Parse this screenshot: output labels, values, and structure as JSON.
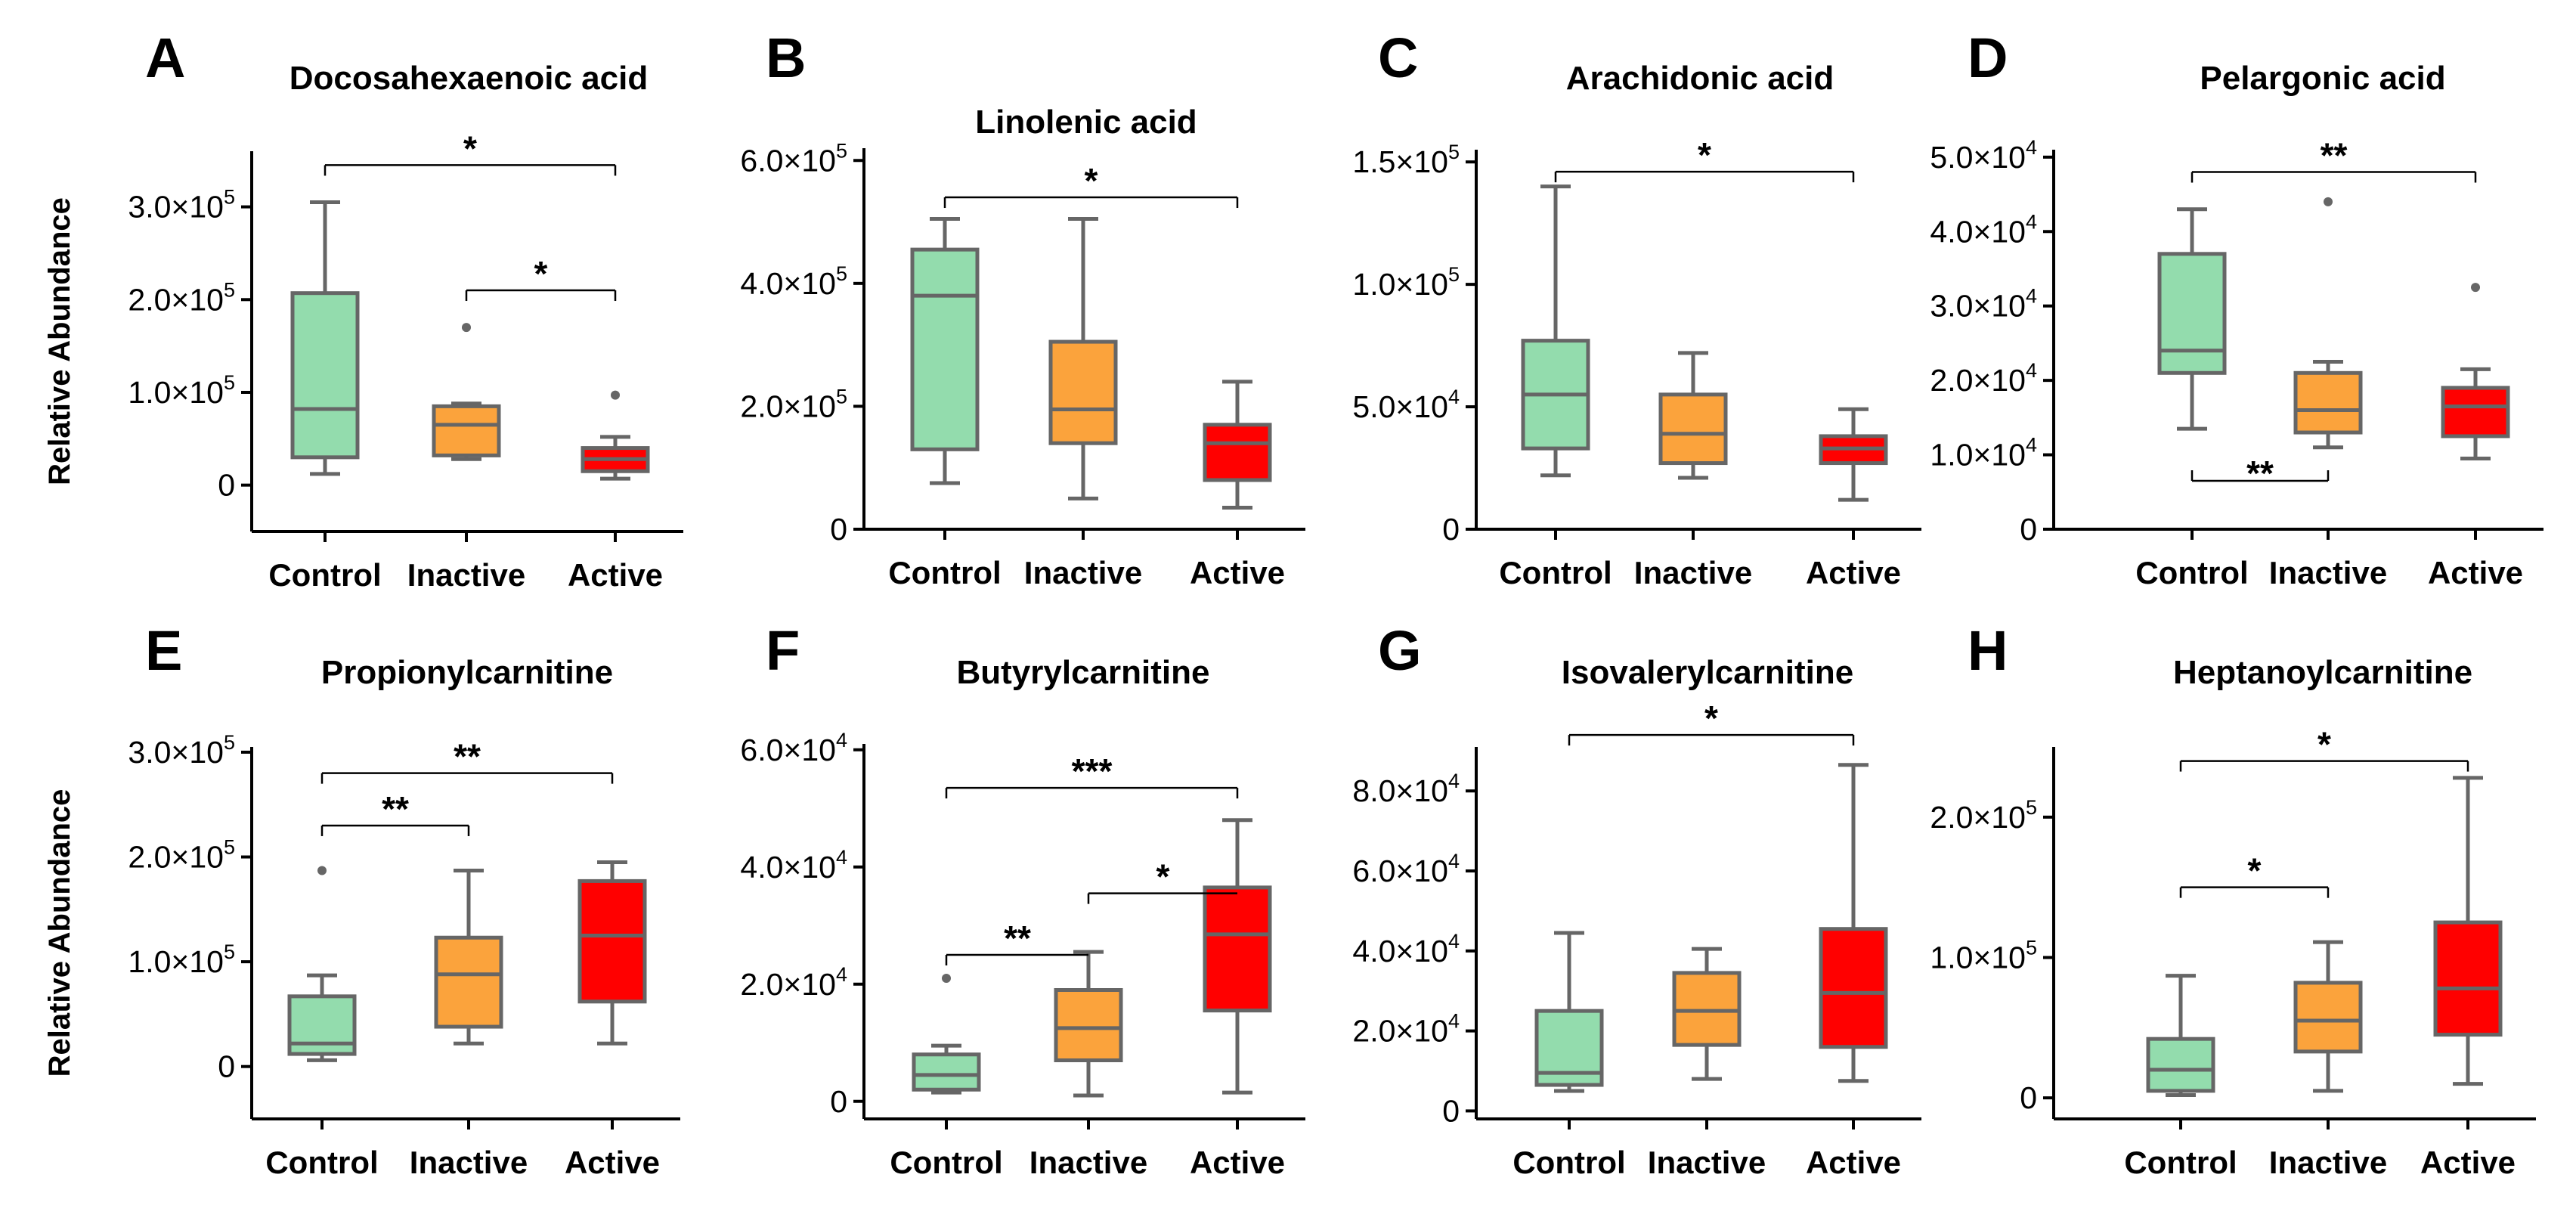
{
  "colors": {
    "Control": "#93dcad",
    "Inactive": "#fba33c",
    "Active": "#ff0000",
    "stroke": "#666666"
  },
  "ylabel": "Relative Abundance",
  "chart_data": [
    {
      "panel": "A",
      "title": "Docosahexaenoic acid",
      "type": "box",
      "categories": [
        "Control",
        "Inactive",
        "Active"
      ],
      "ylim": [
        -50000,
        360000
      ],
      "ylabel": "Relative Abundance",
      "ticks": [
        {
          "value": 0,
          "mant": "0",
          "exp": ""
        },
        {
          "value": 100000,
          "mant": "1.0×10",
          "exp": "5"
        },
        {
          "value": 200000,
          "mant": "2.0×10",
          "exp": "5"
        },
        {
          "value": 300000,
          "mant": "3.0×10",
          "exp": "5"
        }
      ],
      "boxes": [
        {
          "group": "Control",
          "min": 12000,
          "q1": 30000,
          "median": 82000,
          "q3": 207000,
          "max": 305000,
          "outliers": []
        },
        {
          "group": "Inactive",
          "min": 28000,
          "q1": 32000,
          "median": 65000,
          "q3": 85000,
          "max": 88000,
          "outliers": [
            170000
          ]
        },
        {
          "group": "Active",
          "min": 7000,
          "q1": 15000,
          "median": 28000,
          "q3": 40000,
          "max": 52000,
          "outliers": [
            97000
          ]
        }
      ],
      "significance": [
        {
          "from": "Control",
          "to": "Active",
          "label": "*",
          "y": 345000,
          "tick": "down"
        },
        {
          "from": "Inactive",
          "to": "Active",
          "label": "*",
          "y": 210000,
          "tick": "down"
        }
      ]
    },
    {
      "panel": "B",
      "title": "Linolenic acid",
      "type": "box",
      "categories": [
        "Control",
        "Inactive",
        "Active"
      ],
      "ylim": [
        0,
        620000
      ],
      "ticks": [
        {
          "value": 0,
          "mant": "0",
          "exp": ""
        },
        {
          "value": 200000,
          "mant": "2.0×10",
          "exp": "5"
        },
        {
          "value": 400000,
          "mant": "4.0×10",
          "exp": "5"
        },
        {
          "value": 600000,
          "mant": "6.0×10",
          "exp": "5"
        }
      ],
      "boxes": [
        {
          "group": "Control",
          "min": 75000,
          "q1": 130000,
          "median": 380000,
          "q3": 455000,
          "max": 505000,
          "outliers": []
        },
        {
          "group": "Inactive",
          "min": 50000,
          "q1": 140000,
          "median": 195000,
          "q3": 305000,
          "max": 505000,
          "outliers": []
        },
        {
          "group": "Active",
          "min": 35000,
          "q1": 80000,
          "median": 140000,
          "q3": 170000,
          "max": 240000,
          "outliers": []
        }
      ],
      "significance": [
        {
          "from": "Control",
          "to": "Active",
          "label": "*",
          "y": 540000,
          "tick": "down"
        }
      ]
    },
    {
      "panel": "C",
      "title": "Arachidonic acid",
      "type": "box",
      "categories": [
        "Control",
        "Inactive",
        "Active"
      ],
      "ylim": [
        0,
        155000
      ],
      "ticks": [
        {
          "value": 0,
          "mant": "0",
          "exp": ""
        },
        {
          "value": 50000,
          "mant": "5.0×10",
          "exp": "4"
        },
        {
          "value": 100000,
          "mant": "1.0×10",
          "exp": "5"
        },
        {
          "value": 150000,
          "mant": "1.5×10",
          "exp": "5"
        }
      ],
      "boxes": [
        {
          "group": "Control",
          "min": 22000,
          "q1": 33000,
          "median": 55000,
          "q3": 77000,
          "max": 140000,
          "outliers": []
        },
        {
          "group": "Inactive",
          "min": 21000,
          "q1": 27000,
          "median": 39000,
          "q3": 55000,
          "max": 72000,
          "outliers": []
        },
        {
          "group": "Active",
          "min": 12000,
          "q1": 27000,
          "median": 33000,
          "q3": 38000,
          "max": 49000,
          "outliers": []
        }
      ],
      "significance": [
        {
          "from": "Control",
          "to": "Active",
          "label": "*",
          "y": 146000,
          "tick": "down"
        }
      ]
    },
    {
      "panel": "D",
      "title": "Pelargonic acid",
      "type": "box",
      "categories": [
        "Control",
        "Inactive",
        "Active"
      ],
      "ylim": [
        0,
        51000
      ],
      "ticks": [
        {
          "value": 0,
          "mant": "0",
          "exp": ""
        },
        {
          "value": 10000,
          "mant": "1.0×10",
          "exp": "4"
        },
        {
          "value": 20000,
          "mant": "2.0×10",
          "exp": "4"
        },
        {
          "value": 30000,
          "mant": "3.0×10",
          "exp": "4"
        },
        {
          "value": 40000,
          "mant": "4.0×10",
          "exp": "4"
        },
        {
          "value": 50000,
          "mant": "5.0×10",
          "exp": "4"
        }
      ],
      "boxes": [
        {
          "group": "Control",
          "min": 13500,
          "q1": 21000,
          "median": 24000,
          "q3": 37000,
          "max": 43000,
          "outliers": []
        },
        {
          "group": "Inactive",
          "min": 11000,
          "q1": 13000,
          "median": 16000,
          "q3": 21000,
          "max": 22500,
          "outliers": [
            44000
          ]
        },
        {
          "group": "Active",
          "min": 9500,
          "q1": 12500,
          "median": 16500,
          "q3": 19000,
          "max": 21500,
          "outliers": [
            32500
          ]
        }
      ],
      "significance": [
        {
          "from": "Control",
          "to": "Active",
          "label": "**",
          "y": 48000,
          "tick": "down"
        },
        {
          "from": "Control",
          "to": "Inactive",
          "label": "**",
          "y": 6500,
          "tick": "up"
        }
      ]
    },
    {
      "panel": "E",
      "title": "Propionylcarnitine",
      "type": "box",
      "categories": [
        "Control",
        "Inactive",
        "Active"
      ],
      "ylim": [
        -50000,
        305000
      ],
      "ylabel": "Relative Abundance",
      "ticks": [
        {
          "value": 0,
          "mant": "0",
          "exp": ""
        },
        {
          "value": 100000,
          "mant": "1.0×10",
          "exp": "5"
        },
        {
          "value": 200000,
          "mant": "2.0×10",
          "exp": "5"
        },
        {
          "value": 300000,
          "mant": "3.0×10",
          "exp": "5"
        }
      ],
      "boxes": [
        {
          "group": "Control",
          "min": 6000,
          "q1": 12000,
          "median": 22000,
          "q3": 67000,
          "max": 87000,
          "outliers": [
            187000
          ]
        },
        {
          "group": "Inactive",
          "min": 22000,
          "q1": 38000,
          "median": 88000,
          "q3": 123000,
          "max": 187000,
          "outliers": []
        },
        {
          "group": "Active",
          "min": 22000,
          "q1": 62000,
          "median": 125000,
          "q3": 177000,
          "max": 195000,
          "outliers": []
        }
      ],
      "significance": [
        {
          "from": "Control",
          "to": "Active",
          "label": "**",
          "y": 280000,
          "tick": "down"
        },
        {
          "from": "Control",
          "to": "Inactive",
          "label": "**",
          "y": 230000,
          "tick": "down"
        }
      ]
    },
    {
      "panel": "F",
      "title": "Butyrylcarnitine",
      "type": "box",
      "categories": [
        "Control",
        "Inactive",
        "Active"
      ],
      "ylim": [
        -3000,
        61000
      ],
      "ticks": [
        {
          "value": 0,
          "mant": "0",
          "exp": ""
        },
        {
          "value": 20000,
          "mant": "2.0×10",
          "exp": "4"
        },
        {
          "value": 40000,
          "mant": "4.0×10",
          "exp": "4"
        },
        {
          "value": 60000,
          "mant": "6.0×10",
          "exp": "4"
        }
      ],
      "boxes": [
        {
          "group": "Control",
          "min": 1500,
          "q1": 2000,
          "median": 4500,
          "q3": 8000,
          "max": 9500,
          "outliers": [
            21000
          ]
        },
        {
          "group": "Inactive",
          "min": 1000,
          "q1": 7000,
          "median": 12500,
          "q3": 19000,
          "max": 25500,
          "outliers": []
        },
        {
          "group": "Active",
          "min": 1500,
          "q1": 15500,
          "median": 28500,
          "q3": 36500,
          "max": 48000,
          "outliers": []
        }
      ],
      "significance": [
        {
          "from": "Control",
          "to": "Active",
          "label": "***",
          "y": 53500,
          "tick": "down"
        },
        {
          "from": "Control",
          "to": "Inactive",
          "label": "**",
          "y": 25000,
          "tick": "up-half"
        },
        {
          "from": "Inactive",
          "to": "Active",
          "label": "*",
          "y": 35500,
          "tick": "up-half"
        }
      ]
    },
    {
      "panel": "G",
      "title": "Isovalerylcarnitine",
      "type": "box",
      "categories": [
        "Control",
        "Inactive",
        "Active"
      ],
      "ylim": [
        -2000,
        91000
      ],
      "ticks": [
        {
          "value": 0,
          "mant": "0",
          "exp": ""
        },
        {
          "value": 20000,
          "mant": "2.0×10",
          "exp": "4"
        },
        {
          "value": 40000,
          "mant": "4.0×10",
          "exp": "4"
        },
        {
          "value": 60000,
          "mant": "6.0×10",
          "exp": "4"
        },
        {
          "value": 80000,
          "mant": "8.0×10",
          "exp": "4"
        }
      ],
      "boxes": [
        {
          "group": "Control",
          "min": 5000,
          "q1": 6500,
          "median": 9500,
          "q3": 25000,
          "max": 44500,
          "outliers": []
        },
        {
          "group": "Inactive",
          "min": 8000,
          "q1": 16500,
          "median": 25000,
          "q3": 34500,
          "max": 40500,
          "outliers": []
        },
        {
          "group": "Active",
          "min": 7500,
          "q1": 16000,
          "median": 29500,
          "q3": 45500,
          "max": 86500,
          "outliers": []
        }
      ],
      "significance": [
        {
          "from": "Control",
          "to": "Active",
          "label": "*",
          "y": 94000,
          "tick": "down"
        }
      ]
    },
    {
      "panel": "H",
      "title": "Heptanoylcarnitine",
      "type": "box",
      "categories": [
        "Control",
        "Inactive",
        "Active"
      ],
      "ylim": [
        -15000,
        250000
      ],
      "ticks": [
        {
          "value": 0,
          "mant": "0",
          "exp": ""
        },
        {
          "value": 100000,
          "mant": "1.0×10",
          "exp": "5"
        },
        {
          "value": 200000,
          "mant": "2.0×10",
          "exp": "5"
        }
      ],
      "boxes": [
        {
          "group": "Control",
          "min": 2000,
          "q1": 5000,
          "median": 20000,
          "q3": 42000,
          "max": 87000,
          "outliers": []
        },
        {
          "group": "Inactive",
          "min": 5000,
          "q1": 33000,
          "median": 55000,
          "q3": 82000,
          "max": 111000,
          "outliers": []
        },
        {
          "group": "Active",
          "min": 10000,
          "q1": 45000,
          "median": 78000,
          "q3": 125000,
          "max": 228000,
          "outliers": []
        }
      ],
      "significance": [
        {
          "from": "Control",
          "to": "Active",
          "label": "*",
          "y": 240000,
          "tick": "down"
        },
        {
          "from": "Control",
          "to": "Inactive",
          "label": "*",
          "y": 150000,
          "tick": "down"
        }
      ]
    }
  ]
}
